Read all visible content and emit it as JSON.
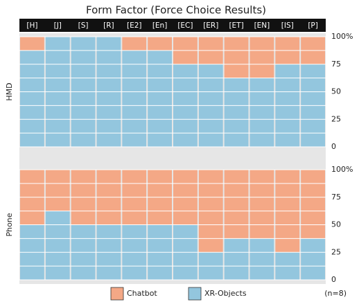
{
  "title": "Form Factor (Force Choice Results)",
  "categories": [
    "[H]",
    "[J]",
    "[S]",
    "[R]",
    "[E2]",
    "[En]",
    "[EC]",
    "[ER]",
    "[ET]",
    "[EN]",
    "[IS]",
    "[P]"
  ],
  "note": "(n=8)",
  "chart_data": [
    {
      "type": "bar",
      "stacked": true,
      "ylabel": "HMD",
      "series": [
        {
          "name": "Chatbot",
          "color": "#f4a886",
          "values": [
            12.5,
            0,
            0,
            0,
            12.5,
            12.5,
            25,
            25,
            37.5,
            37.5,
            25,
            25
          ]
        },
        {
          "name": "XR-Objects",
          "color": "#93c6de",
          "values": [
            87.5,
            100,
            100,
            100,
            87.5,
            87.5,
            75,
            75,
            62.5,
            62.5,
            75,
            75
          ]
        }
      ],
      "ylim": [
        0,
        100
      ],
      "yticks": [
        0,
        25,
        50,
        75,
        {
          "value": 100,
          "label": "100%"
        }
      ],
      "minor_yticks": [
        12.5,
        37.5,
        62.5,
        87.5
      ]
    },
    {
      "type": "bar",
      "stacked": true,
      "ylabel": "Phone",
      "series": [
        {
          "name": "Chatbot",
          "color": "#f4a886",
          "values": [
            50,
            37.5,
            50,
            50,
            50,
            50,
            50,
            75,
            62.5,
            62.5,
            75,
            62.5
          ]
        },
        {
          "name": "XR-Objects",
          "color": "#93c6de",
          "values": [
            50,
            62.5,
            50,
            50,
            50,
            50,
            50,
            25,
            37.5,
            37.5,
            25,
            37.5
          ]
        }
      ],
      "ylim": [
        0,
        100
      ],
      "yticks": [
        0,
        25,
        50,
        75,
        {
          "value": 100,
          "label": "100%"
        }
      ],
      "minor_yticks": [
        12.5,
        37.5,
        62.5,
        87.5
      ]
    }
  ]
}
